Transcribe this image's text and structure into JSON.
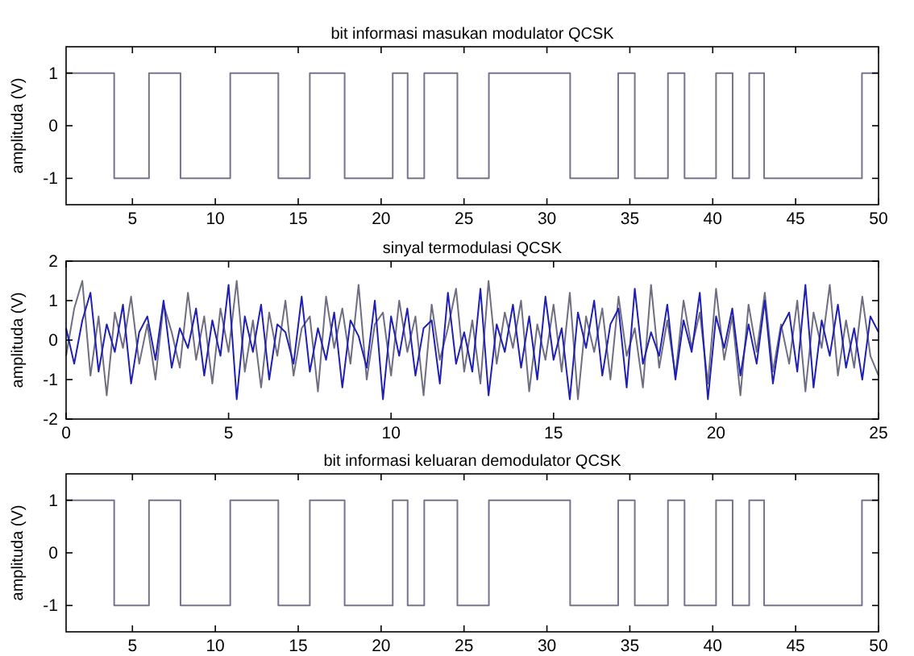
{
  "chart_data": [
    {
      "type": "step",
      "title": "bit informasi masukan modulator QCSK",
      "ylabel": "amplituda (V)",
      "xlim": [
        1,
        50
      ],
      "ylim": [
        -1.5,
        1.5
      ],
      "xticks": [
        5,
        10,
        15,
        20,
        25,
        30,
        35,
        40,
        45,
        50
      ],
      "yticks": [
        -1,
        0,
        1
      ],
      "x": [
        1,
        3.9,
        6,
        7.9,
        10.9,
        13.8,
        15.7,
        17.8,
        20.7,
        21.6,
        22.6,
        24.6,
        26.5,
        31.4,
        34.3,
        35.3,
        37.3,
        38.3,
        40.2,
        41.2,
        42.2,
        43.1,
        49,
        50
      ],
      "series": [
        {
          "color": "#75758c",
          "values": [
            1,
            -1,
            1,
            -1,
            1,
            -1,
            1,
            -1,
            1,
            -1,
            1,
            -1,
            1,
            -1,
            1,
            -1,
            1,
            -1,
            1,
            -1,
            1,
            -1,
            1,
            1
          ]
        }
      ]
    },
    {
      "type": "line",
      "title": "sinyal termodulasi QCSK",
      "ylabel": "amplituda (V)",
      "xlim": [
        0,
        25
      ],
      "ylim": [
        -2,
        2
      ],
      "xticks": [
        0,
        5,
        10,
        15,
        20,
        25
      ],
      "yticks": [
        -2,
        -1,
        0,
        1,
        2
      ],
      "x": [
        0,
        0.25,
        0.5,
        0.75,
        1,
        1.25,
        1.5,
        1.75,
        2,
        2.25,
        2.5,
        2.75,
        3,
        3.25,
        3.5,
        3.75,
        4,
        4.25,
        4.5,
        4.75,
        5,
        5.25,
        5.5,
        5.75,
        6,
        6.25,
        6.5,
        6.75,
        7,
        7.25,
        7.5,
        7.75,
        8,
        8.25,
        8.5,
        8.75,
        9,
        9.25,
        9.5,
        9.75,
        10,
        10.25,
        10.5,
        10.75,
        11,
        11.25,
        11.5,
        11.75,
        12,
        12.25,
        12.5,
        12.75,
        13,
        13.25,
        13.5,
        13.75,
        14,
        14.25,
        14.5,
        14.75,
        15,
        15.25,
        15.5,
        15.75,
        16,
        16.25,
        16.5,
        16.75,
        17,
        17.25,
        17.5,
        17.75,
        18,
        18.25,
        18.5,
        18.75,
        19,
        19.25,
        19.5,
        19.75,
        20,
        20.25,
        20.5,
        20.75,
        21,
        21.25,
        21.5,
        21.75,
        22,
        22.25,
        22.5,
        22.75,
        23,
        23.25,
        23.5,
        23.75,
        24,
        24.25,
        24.5,
        24.75,
        25
      ],
      "series": [
        {
          "color": "#6e6e80",
          "values": [
            -0.4,
            0.8,
            1.5,
            -0.9,
            0.6,
            -1.4,
            0.7,
            -0.2,
            1.1,
            -0.6,
            0.4,
            -1.0,
            0.9,
            0.2,
            -0.7,
            1.2,
            -0.5,
            0.6,
            -1.1,
            0.8,
            -0.3,
            1.5,
            -0.8,
            0.5,
            -1.2,
            0.7,
            -0.4,
            1.0,
            -0.9,
            0.3,
            0.6,
            -1.3,
            1.1,
            -0.2,
            0.8,
            -0.6,
            1.4,
            -1.0,
            0.4,
            0.7,
            -0.9,
            1.0,
            -0.3,
            0.6,
            -1.4,
            0.9,
            -0.5,
            0.3,
            1.3,
            -0.8,
            0.5,
            -1.1,
            1.5,
            -0.6,
            0.7,
            -0.2,
            1.0,
            -1.3,
            0.4,
            -0.5,
            0.9,
            -0.8,
            1.2,
            -1.5,
            0.6,
            -0.3,
            0.8,
            -1.0,
            1.1,
            -0.4,
            0.3,
            -1.2,
            1.4,
            -0.7,
            0.5,
            -0.9,
            1.0,
            -0.2,
            0.7,
            -1.1,
            1.3,
            -0.5,
            0.6,
            -1.4,
            0.9,
            -0.3,
            1.2,
            -0.8,
            0.4,
            -0.6,
            1.0,
            -1.3,
            0.7,
            -0.2,
            1.4,
            -0.9,
            0.5,
            -0.7,
            1.1,
            -0.4,
            -0.9
          ]
        },
        {
          "color": "#1f1fb4",
          "values": [
            0.3,
            -0.6,
            0.5,
            1.2,
            -0.8,
            0.4,
            -0.3,
            0.9,
            -1.1,
            0.2,
            0.6,
            -0.5,
            1.0,
            -0.7,
            0.3,
            -0.2,
            0.8,
            -0.9,
            0.5,
            -0.4,
            1.4,
            -1.5,
            0.6,
            -0.3,
            0.9,
            -1.0,
            0.4,
            0.2,
            -0.6,
            1.1,
            -0.8,
            0.3,
            -0.5,
            0.7,
            -1.2,
            0.5,
            0.1,
            -0.7,
            1.0,
            -1.5,
            0.6,
            -0.4,
            0.8,
            -0.9,
            0.3,
            0.5,
            -1.1,
            1.2,
            -0.6,
            0.2,
            -0.8,
            1.3,
            -1.4,
            0.4,
            -0.3,
            0.9,
            -0.7,
            0.6,
            -1.0,
            1.1,
            -0.5,
            0.3,
            -1.5,
            0.7,
            -0.2,
            1.0,
            -0.9,
            0.4,
            0.8,
            -1.2,
            1.3,
            -0.6,
            0.2,
            -0.4,
            0.9,
            -1.0,
            0.5,
            -0.3,
            1.2,
            -1.5,
            0.6,
            -0.2,
            0.8,
            -0.9,
            0.4,
            -0.6,
            1.0,
            -1.1,
            0.3,
            0.7,
            -0.8,
            1.4,
            -1.2,
            0.5,
            -0.4,
            0.9,
            -0.7,
            0.3,
            -1.0,
            0.6,
            0.2
          ]
        }
      ]
    },
    {
      "type": "step",
      "title": "bit informasi keluaran demodulator QCSK",
      "ylabel": "amplituda (V)",
      "xlim": [
        1,
        50
      ],
      "ylim": [
        -1.5,
        1.5
      ],
      "xticks": [
        5,
        10,
        15,
        20,
        25,
        30,
        35,
        40,
        45,
        50
      ],
      "yticks": [
        -1,
        0,
        1
      ],
      "x": [
        1,
        3.9,
        6,
        7.9,
        10.9,
        13.8,
        15.7,
        17.8,
        20.7,
        21.6,
        22.6,
        24.6,
        26.5,
        31.4,
        34.3,
        35.3,
        37.3,
        38.3,
        40.2,
        41.2,
        42.2,
        43.1,
        49,
        50
      ],
      "series": [
        {
          "color": "#75758c",
          "values": [
            1,
            -1,
            1,
            -1,
            1,
            -1,
            1,
            -1,
            1,
            -1,
            1,
            -1,
            1,
            -1,
            1,
            -1,
            1,
            -1,
            1,
            -1,
            1,
            -1,
            1,
            1
          ]
        }
      ]
    }
  ]
}
